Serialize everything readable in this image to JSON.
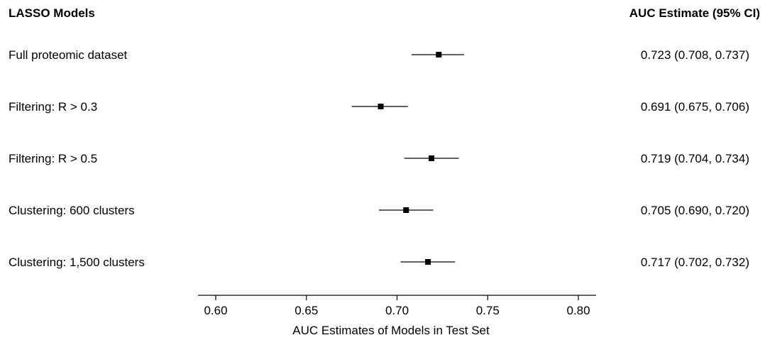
{
  "chart_data": {
    "type": "forest",
    "left_header": "LASSO Models",
    "right_header": "AUC Estimate (95% CI)",
    "xlabel": "AUC Estimates of Models in Test Set",
    "xlim": [
      0.6,
      0.8
    ],
    "ticks": [
      0.6,
      0.65,
      0.7,
      0.75,
      0.8
    ],
    "tick_labels": [
      "0.60",
      "0.65",
      "0.70",
      "0.75",
      "0.80"
    ],
    "rows": [
      {
        "label": "Full proteomic dataset",
        "estimate": 0.723,
        "lower": 0.708,
        "upper": 0.737,
        "text": "0.723 (0.708, 0.737)"
      },
      {
        "label": "Filtering: R > 0.3",
        "estimate": 0.691,
        "lower": 0.675,
        "upper": 0.706,
        "text": "0.691 (0.675, 0.706)"
      },
      {
        "label": "Filtering: R > 0.5",
        "estimate": 0.719,
        "lower": 0.704,
        "upper": 0.734,
        "text": "0.719 (0.704, 0.734)"
      },
      {
        "label": "Clustering: 600 clusters",
        "estimate": 0.705,
        "lower": 0.69,
        "upper": 0.72,
        "text": "0.705 (0.690, 0.720)"
      },
      {
        "label": "Clustering: 1,500 clusters",
        "estimate": 0.717,
        "lower": 0.702,
        "upper": 0.732,
        "text": "0.717 (0.702, 0.732)"
      }
    ]
  }
}
